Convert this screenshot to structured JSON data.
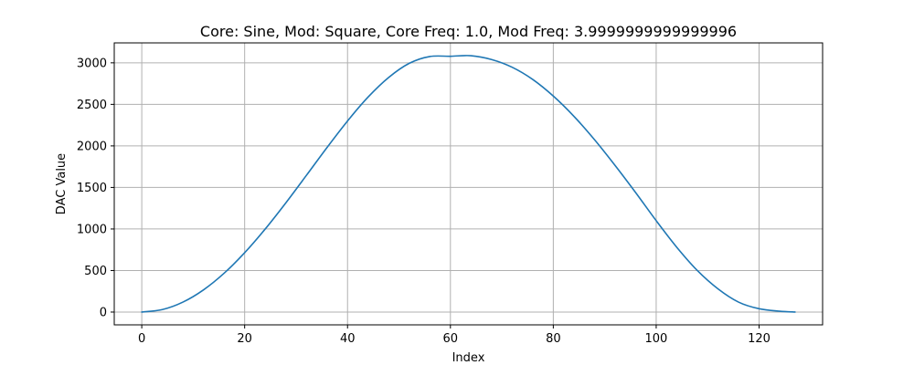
{
  "chart_data": {
    "type": "line",
    "title": "Core: Sine, Mod: Square, Core Freq: 1.0, Mod Freq: 3.9999999999999996",
    "xlabel": "Index",
    "ylabel": "DAC Value",
    "xlim": [
      -5.35,
      132.35
    ],
    "ylim": [
      -154,
      3240
    ],
    "x_ticks": [
      0,
      20,
      40,
      60,
      80,
      100,
      120
    ],
    "y_ticks": [
      0,
      500,
      1000,
      1500,
      2000,
      2500,
      3000
    ],
    "x_tick_labels": [
      "0",
      "20",
      "40",
      "60",
      "80",
      "100",
      "120"
    ],
    "y_tick_labels": [
      "0",
      "500",
      "1000",
      "1500",
      "2000",
      "2500",
      "3000"
    ],
    "grid": true,
    "legend": "none",
    "series": [
      {
        "color": "#1f77b4",
        "x": [
          0,
          4,
          8,
          12,
          16,
          20,
          24,
          28,
          32,
          36,
          40,
          44,
          48,
          52,
          56,
          60,
          64,
          68,
          72,
          76,
          80,
          84,
          88,
          92,
          96,
          100,
          104,
          108,
          112,
          116,
          120,
          124,
          127
        ],
        "y": [
          0,
          30,
          120,
          267,
          467,
          714,
          1000,
          1314,
          1645,
          1980,
          2300,
          2588,
          2824,
          2994,
          3076,
          3079,
          3086,
          3040,
          2947,
          2800,
          2600,
          2357,
          2076,
          1766,
          1439,
          1100,
          780,
          500,
          280,
          120,
          40,
          10,
          0
        ]
      }
    ]
  }
}
